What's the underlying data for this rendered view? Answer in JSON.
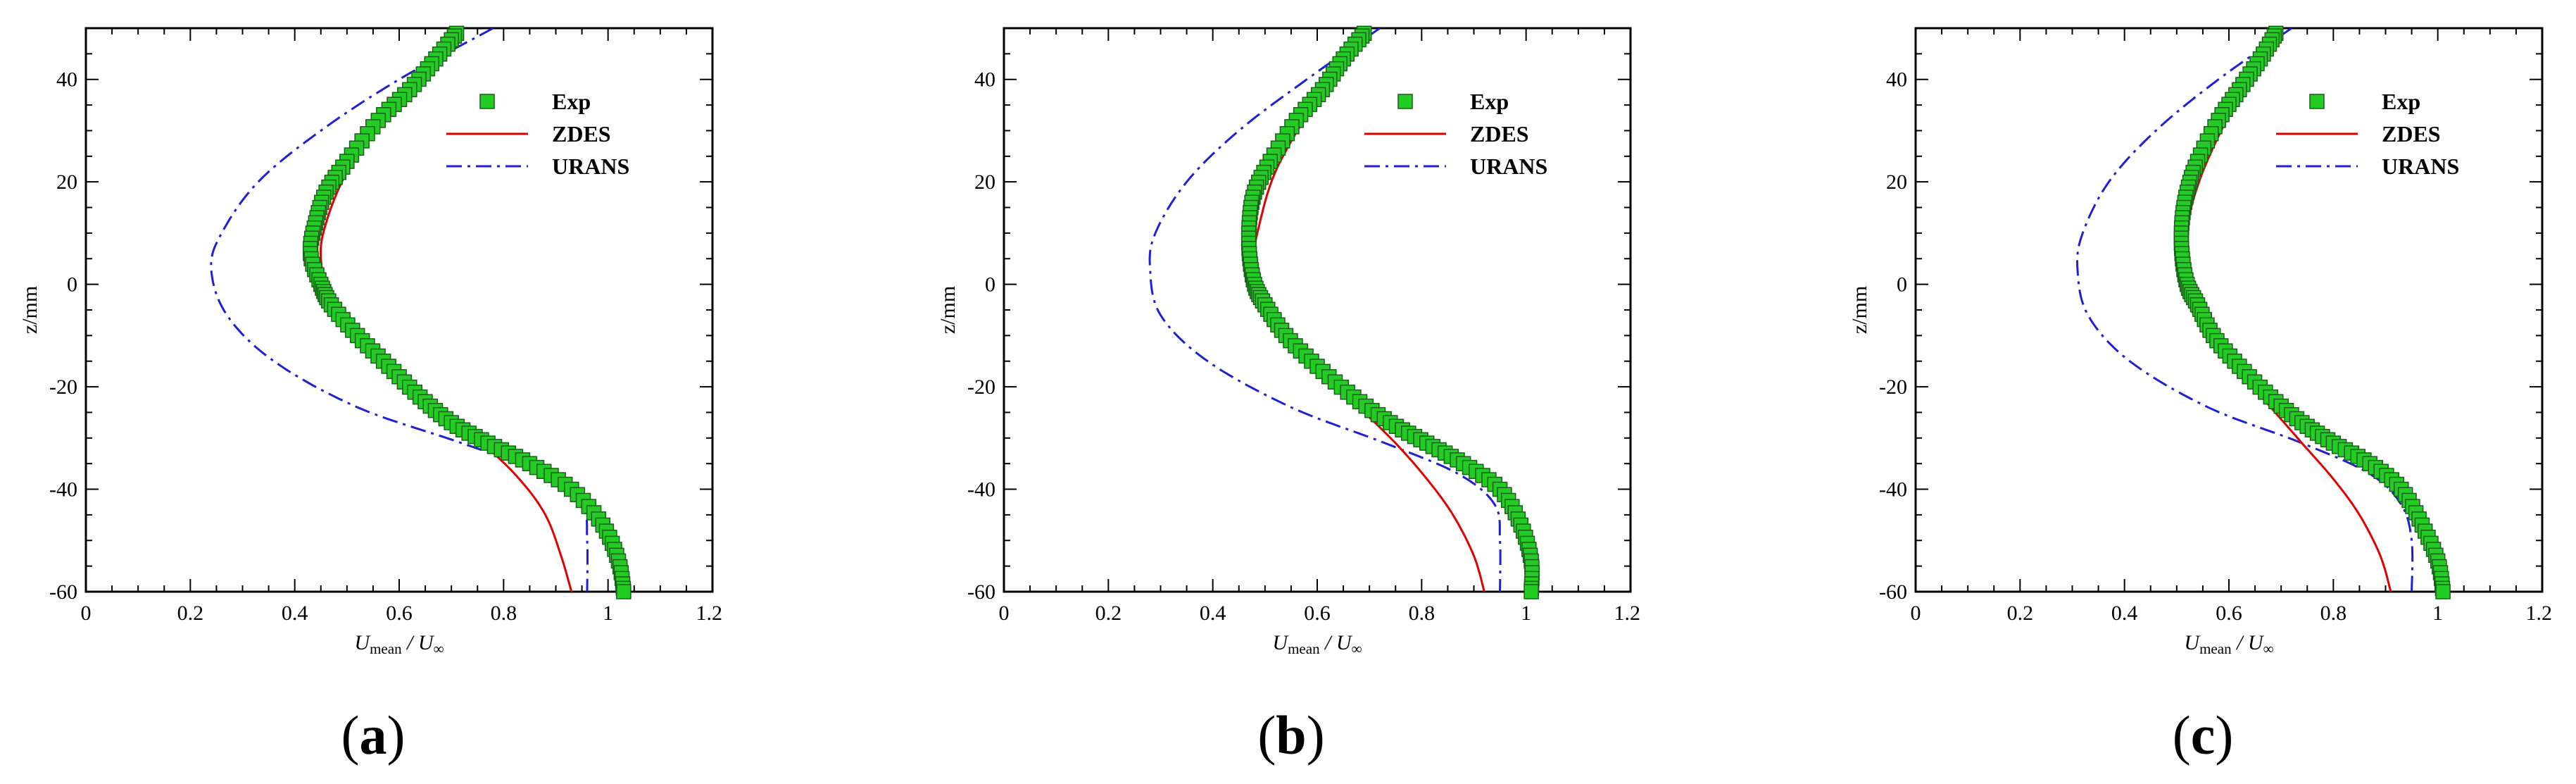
{
  "colors": {
    "exp_fill": "#22cc22",
    "exp_edge": "#1a5e1a",
    "zdes": "#e00000",
    "urans": "#1f1fd6",
    "axis": "#000000"
  },
  "chart_data": [
    {
      "panel": "a",
      "panel_label": {
        "open": "(",
        "letter": "a",
        "close": ")"
      },
      "type": "line",
      "xlabel": {
        "main": "U",
        "sub1": "mean",
        "sep": " / U",
        "sub2": "∞"
      },
      "ylabel": "z/mm",
      "xlim": [
        0,
        1.2
      ],
      "ylim": [
        -60,
        50
      ],
      "xticks": [
        0,
        0.2,
        0.4,
        0.6,
        0.8,
        1,
        1.2
      ],
      "xtick_labels": [
        "0",
        "0.2",
        "0.4",
        "0.6",
        "0.8",
        "1",
        "1.2"
      ],
      "yticks": [
        -60,
        -40,
        -20,
        0,
        20,
        40
      ],
      "ytick_labels": [
        "-60",
        "-40",
        "-20",
        "0",
        "20",
        "40"
      ],
      "legend": [
        "Exp",
        "ZDES",
        "URANS"
      ],
      "series": [
        {
          "name": "Exp",
          "style": "markers",
          "x": [
            0.71,
            0.67,
            0.62,
            0.56,
            0.5,
            0.46,
            0.44,
            0.43,
            0.45,
            0.47,
            0.52,
            0.58,
            0.64,
            0.7,
            0.77,
            0.85,
            0.93,
            0.99,
            1.02,
            1.03
          ],
          "y": [
            49,
            44,
            38,
            32,
            24,
            18,
            12,
            6,
            0,
            -4,
            -10,
            -16,
            -22,
            -27,
            -31,
            -35,
            -40,
            -47,
            -54,
            -60
          ]
        },
        {
          "name": "ZDES",
          "style": "solid",
          "x": [
            0.72,
            0.65,
            0.57,
            0.5,
            0.46,
            0.45,
            0.47,
            0.53,
            0.6,
            0.68,
            0.76,
            0.83,
            0.88,
            0.91,
            0.93
          ],
          "y": [
            50,
            42,
            33,
            22,
            12,
            5,
            -3,
            -10,
            -17,
            -24,
            -31,
            -38,
            -45,
            -53,
            -60
          ]
        },
        {
          "name": "URANS",
          "style": "dashdot",
          "x": [
            0.78,
            0.6,
            0.45,
            0.33,
            0.26,
            0.24,
            0.27,
            0.36,
            0.52,
            0.72,
            0.88,
            0.95,
            0.96,
            0.96
          ],
          "y": [
            50,
            40,
            30,
            20,
            10,
            3,
            -6,
            -15,
            -24,
            -31,
            -37,
            -43,
            -50,
            -60
          ]
        }
      ]
    },
    {
      "panel": "b",
      "panel_label": {
        "open": "(",
        "letter": "b",
        "close": ")"
      },
      "type": "line",
      "xlabel": {
        "main": "U",
        "sub1": "mean",
        "sep": " / U",
        "sub2": "∞"
      },
      "ylabel": "z/mm",
      "xlim": [
        0,
        1.2
      ],
      "ylim": [
        -60,
        50
      ],
      "xticks": [
        0,
        0.2,
        0.4,
        0.6,
        0.8,
        1,
        1.2
      ],
      "xtick_labels": [
        "0",
        "0.2",
        "0.4",
        "0.6",
        "0.8",
        "1",
        "1.2"
      ],
      "yticks": [
        -60,
        -40,
        -20,
        0,
        20,
        40
      ],
      "ytick_labels": [
        "-60",
        "-40",
        "-20",
        "0",
        "20",
        "40"
      ],
      "legend": [
        "Exp",
        "ZDES",
        "URANS"
      ],
      "series": [
        {
          "name": "Exp",
          "style": "markers",
          "x": [
            0.69,
            0.65,
            0.61,
            0.56,
            0.51,
            0.48,
            0.47,
            0.47,
            0.48,
            0.5,
            0.54,
            0.6,
            0.67,
            0.74,
            0.81,
            0.88,
            0.95,
            0.99,
            1.01,
            1.01
          ],
          "y": [
            49,
            44,
            38,
            32,
            24,
            18,
            12,
            6,
            0,
            -4,
            -10,
            -16,
            -22,
            -27,
            -31,
            -35,
            -40,
            -47,
            -54,
            -60
          ]
        },
        {
          "name": "ZDES",
          "style": "solid",
          "x": [
            0.7,
            0.64,
            0.58,
            0.52,
            0.49,
            0.48,
            0.5,
            0.55,
            0.61,
            0.68,
            0.75,
            0.81,
            0.86,
            0.9,
            0.92
          ],
          "y": [
            50,
            42,
            33,
            22,
            12,
            5,
            -3,
            -10,
            -17,
            -24,
            -31,
            -38,
            -45,
            -53,
            -60
          ]
        },
        {
          "name": "URANS",
          "style": "dashdot",
          "x": [
            0.72,
            0.58,
            0.45,
            0.35,
            0.29,
            0.28,
            0.3,
            0.39,
            0.55,
            0.73,
            0.87,
            0.94,
            0.95,
            0.95
          ],
          "y": [
            50,
            40,
            30,
            20,
            10,
            3,
            -6,
            -15,
            -24,
            -31,
            -37,
            -43,
            -50,
            -60
          ]
        }
      ]
    },
    {
      "panel": "c",
      "panel_label": {
        "open": "(",
        "letter": "c",
        "close": ")"
      },
      "type": "line",
      "xlabel": {
        "main": "U",
        "sub1": "mean",
        "sep": " / U",
        "sub2": "∞"
      },
      "ylabel": "z/mm",
      "xlim": [
        0,
        1.2
      ],
      "ylim": [
        -60,
        50
      ],
      "xticks": [
        0,
        0.2,
        0.4,
        0.6,
        0.8,
        1,
        1.2
      ],
      "xtick_labels": [
        "0",
        "0.2",
        "0.4",
        "0.6",
        "0.8",
        "1",
        "1.2"
      ],
      "yticks": [
        -60,
        -40,
        -20,
        0,
        20,
        40
      ],
      "ytick_labels": [
        "-60",
        "-40",
        "-20",
        "0",
        "20",
        "40"
      ],
      "legend": [
        "Exp",
        "ZDES",
        "URANS"
      ],
      "series": [
        {
          "name": "Exp",
          "style": "markers",
          "x": [
            0.69,
            0.66,
            0.62,
            0.58,
            0.54,
            0.52,
            0.51,
            0.51,
            0.52,
            0.54,
            0.57,
            0.62,
            0.68,
            0.74,
            0.8,
            0.87,
            0.93,
            0.97,
            1.0,
            1.01
          ],
          "y": [
            49,
            44,
            38,
            32,
            24,
            18,
            12,
            6,
            0,
            -4,
            -10,
            -16,
            -22,
            -27,
            -31,
            -35,
            -40,
            -47,
            -54,
            -60
          ]
        },
        {
          "name": "ZDES",
          "style": "solid",
          "x": [
            0.7,
            0.65,
            0.6,
            0.55,
            0.52,
            0.51,
            0.52,
            0.56,
            0.62,
            0.68,
            0.74,
            0.8,
            0.85,
            0.89,
            0.91
          ],
          "y": [
            50,
            42,
            33,
            22,
            12,
            5,
            -3,
            -10,
            -17,
            -24,
            -31,
            -38,
            -45,
            -53,
            -60
          ]
        },
        {
          "name": "URANS",
          "style": "dashdot",
          "x": [
            0.72,
            0.58,
            0.46,
            0.37,
            0.32,
            0.31,
            0.33,
            0.41,
            0.56,
            0.74,
            0.87,
            0.93,
            0.95,
            0.95
          ],
          "y": [
            50,
            40,
            30,
            20,
            10,
            3,
            -6,
            -15,
            -24,
            -31,
            -37,
            -43,
            -50,
            -60
          ]
        }
      ]
    }
  ]
}
